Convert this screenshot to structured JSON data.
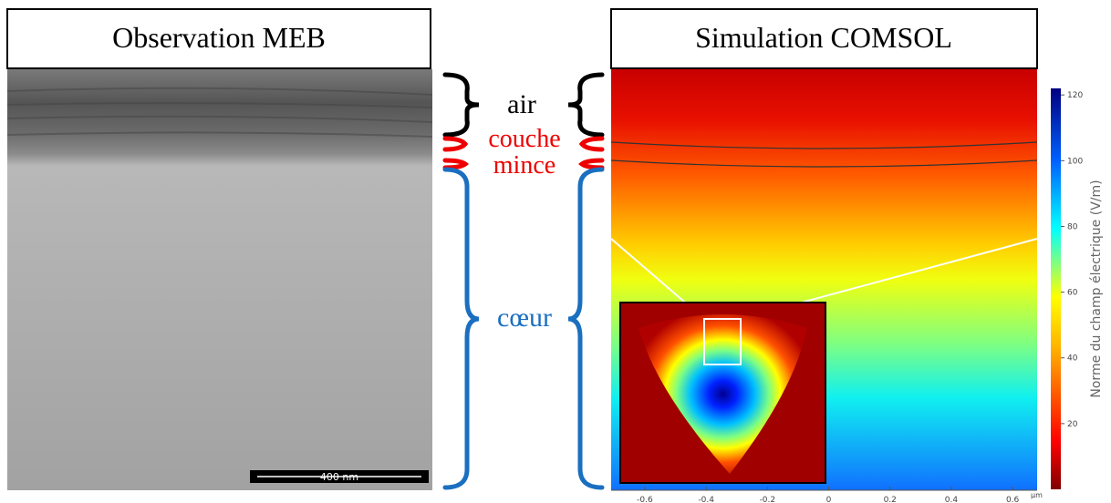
{
  "left_panel": {
    "title": "Observation MEB",
    "scale_bar": "400 nm"
  },
  "layer_labels": {
    "air": "air",
    "thin_layer": [
      "couche",
      "mince"
    ],
    "core": "cœur"
  },
  "right_panel": {
    "title": "Simulation COMSOL",
    "x_axis": {
      "unit": "µm",
      "xlim": [
        -0.71,
        0.68
      ],
      "ticks": [
        -0.6,
        -0.4,
        -0.2,
        0,
        0.2,
        0.4,
        0.6
      ]
    },
    "colorbar": {
      "label": "Norme du champ électrique (V/m)",
      "range": [
        0,
        122
      ],
      "ticks": [
        20,
        40,
        60,
        80,
        100,
        120
      ]
    }
  }
}
